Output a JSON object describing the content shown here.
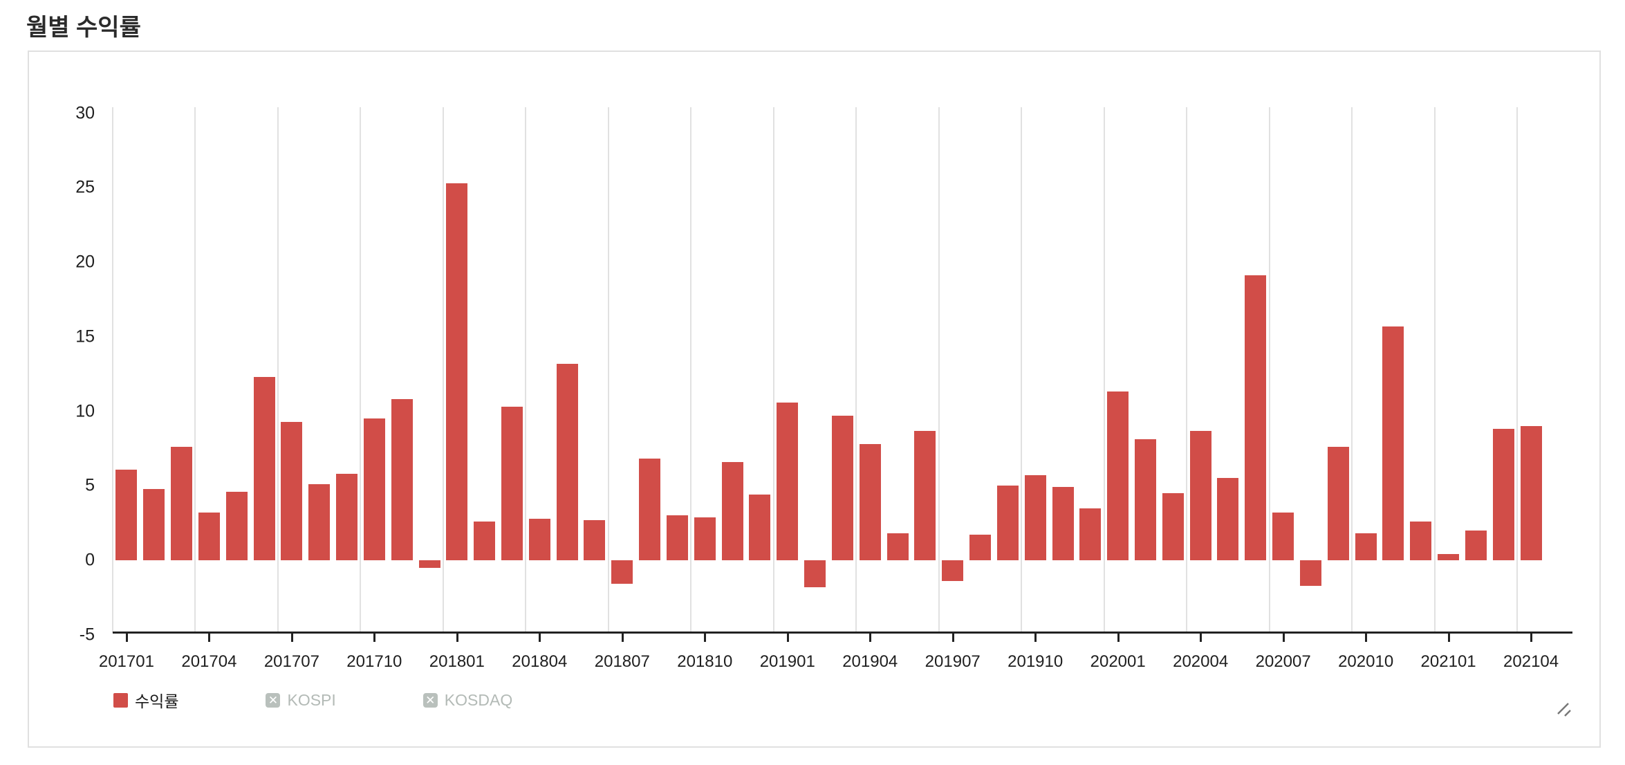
{
  "title": "월별 수익률",
  "legend": {
    "items": [
      {
        "label": "수익률",
        "state": "active"
      },
      {
        "label": "KOSPI",
        "state": "disabled"
      },
      {
        "label": "KOSDAQ",
        "state": "disabled"
      }
    ]
  },
  "colors": {
    "bar": "#d14d48",
    "disabled_swatch": "#b9c0bc",
    "disabled_text": "#b3bab6",
    "gridline": "#e1e1e1",
    "axis": "#222222"
  },
  "chart_data": {
    "type": "bar",
    "title": "월별 수익률",
    "grid": "vertical-only",
    "legend_position": "bottom",
    "ylim": [
      -5,
      30.4
    ],
    "y_tick_labels": [
      "30",
      "25",
      "20",
      "15",
      "10",
      "5",
      "0",
      "-5"
    ],
    "y_tick_values": [
      30,
      25,
      20,
      15,
      10,
      5,
      0,
      -5
    ],
    "x_tick_labels": [
      "201701",
      "201704",
      "201707",
      "201710",
      "201801",
      "201804",
      "201807",
      "201810",
      "201901",
      "201904",
      "201907",
      "201910",
      "202001",
      "202004",
      "202007",
      "202010",
      "202101",
      "202104"
    ],
    "x": [
      "201701",
      "201702",
      "201703",
      "201704",
      "201705",
      "201706",
      "201707",
      "201708",
      "201709",
      "201710",
      "201711",
      "201712",
      "201801",
      "201802",
      "201803",
      "201804",
      "201805",
      "201806",
      "201807",
      "201808",
      "201809",
      "201810",
      "201811",
      "201812",
      "201901",
      "201902",
      "201903",
      "201904",
      "201905",
      "201906",
      "201907",
      "201908",
      "201909",
      "201910",
      "201911",
      "201912",
      "202001",
      "202002",
      "202003",
      "202004",
      "202005",
      "202006",
      "202007",
      "202008",
      "202009",
      "202010",
      "202011",
      "202012",
      "202101",
      "202102",
      "202103",
      "202104"
    ],
    "series": [
      {
        "name": "수익률",
        "color": "#d14d48",
        "values": [
          6.1,
          4.8,
          7.6,
          3.2,
          4.6,
          12.3,
          9.3,
          5.1,
          5.8,
          9.5,
          10.8,
          -0.5,
          25.3,
          2.6,
          10.3,
          2.8,
          13.2,
          2.7,
          -1.6,
          6.8,
          3.0,
          2.9,
          6.6,
          4.4,
          10.6,
          -1.8,
          9.7,
          7.8,
          1.8,
          8.7,
          -1.4,
          1.7,
          5.0,
          5.7,
          4.9,
          3.5,
          11.3,
          8.1,
          4.5,
          8.7,
          5.5,
          19.1,
          3.2,
          -1.7,
          7.6,
          1.8,
          15.7,
          2.6,
          0.4,
          2.0,
          8.8,
          9.0
        ]
      }
    ]
  }
}
